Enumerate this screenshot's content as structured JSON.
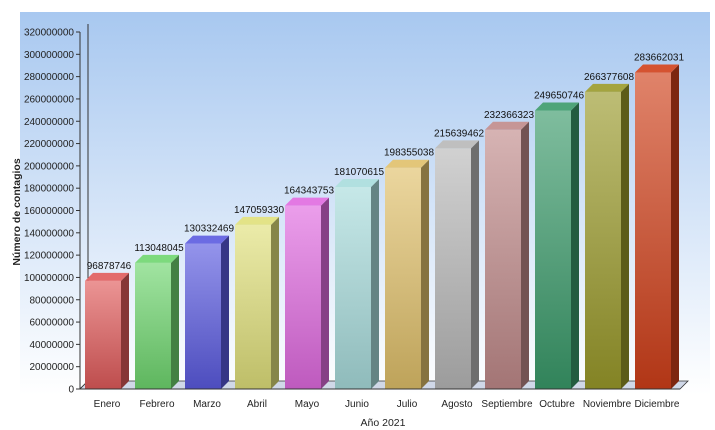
{
  "chart_data": {
    "type": "bar",
    "style": "3d",
    "categories": [
      "Enero",
      "Febrero",
      "Marzo",
      "Abril",
      "Mayo",
      "Junio",
      "Julio",
      "Agosto",
      "Septiembre",
      "Octubre",
      "Noviembre",
      "Diciembre"
    ],
    "values": [
      96878746,
      113048045,
      130332469,
      147059330,
      164343753,
      181070615,
      198355038,
      215639462,
      232366323,
      249650746,
      266377608,
      283662031
    ],
    "xlabel": "Año 2021",
    "ylabel": "Número de contagios",
    "ylim": [
      0,
      320000000
    ],
    "yticks": [
      0,
      20000000,
      40000000,
      60000000,
      80000000,
      100000000,
      120000000,
      140000000,
      160000000,
      180000000,
      200000000,
      220000000,
      240000000,
      260000000,
      280000000,
      300000000,
      320000000
    ],
    "grid": false,
    "legend": "none",
    "colors": [
      "#e05a5a",
      "#6fd66f",
      "#5a5ae0",
      "#e0e07a",
      "#e06ae0",
      "#a8dcdc",
      "#e0c06a",
      "#b8b8b8",
      "#c08a8a",
      "#3a9a6a",
      "#9a9a2a",
      "#d0401a"
    ],
    "background_top": "#a8c8f0",
    "background_bottom": "#ffffff"
  }
}
